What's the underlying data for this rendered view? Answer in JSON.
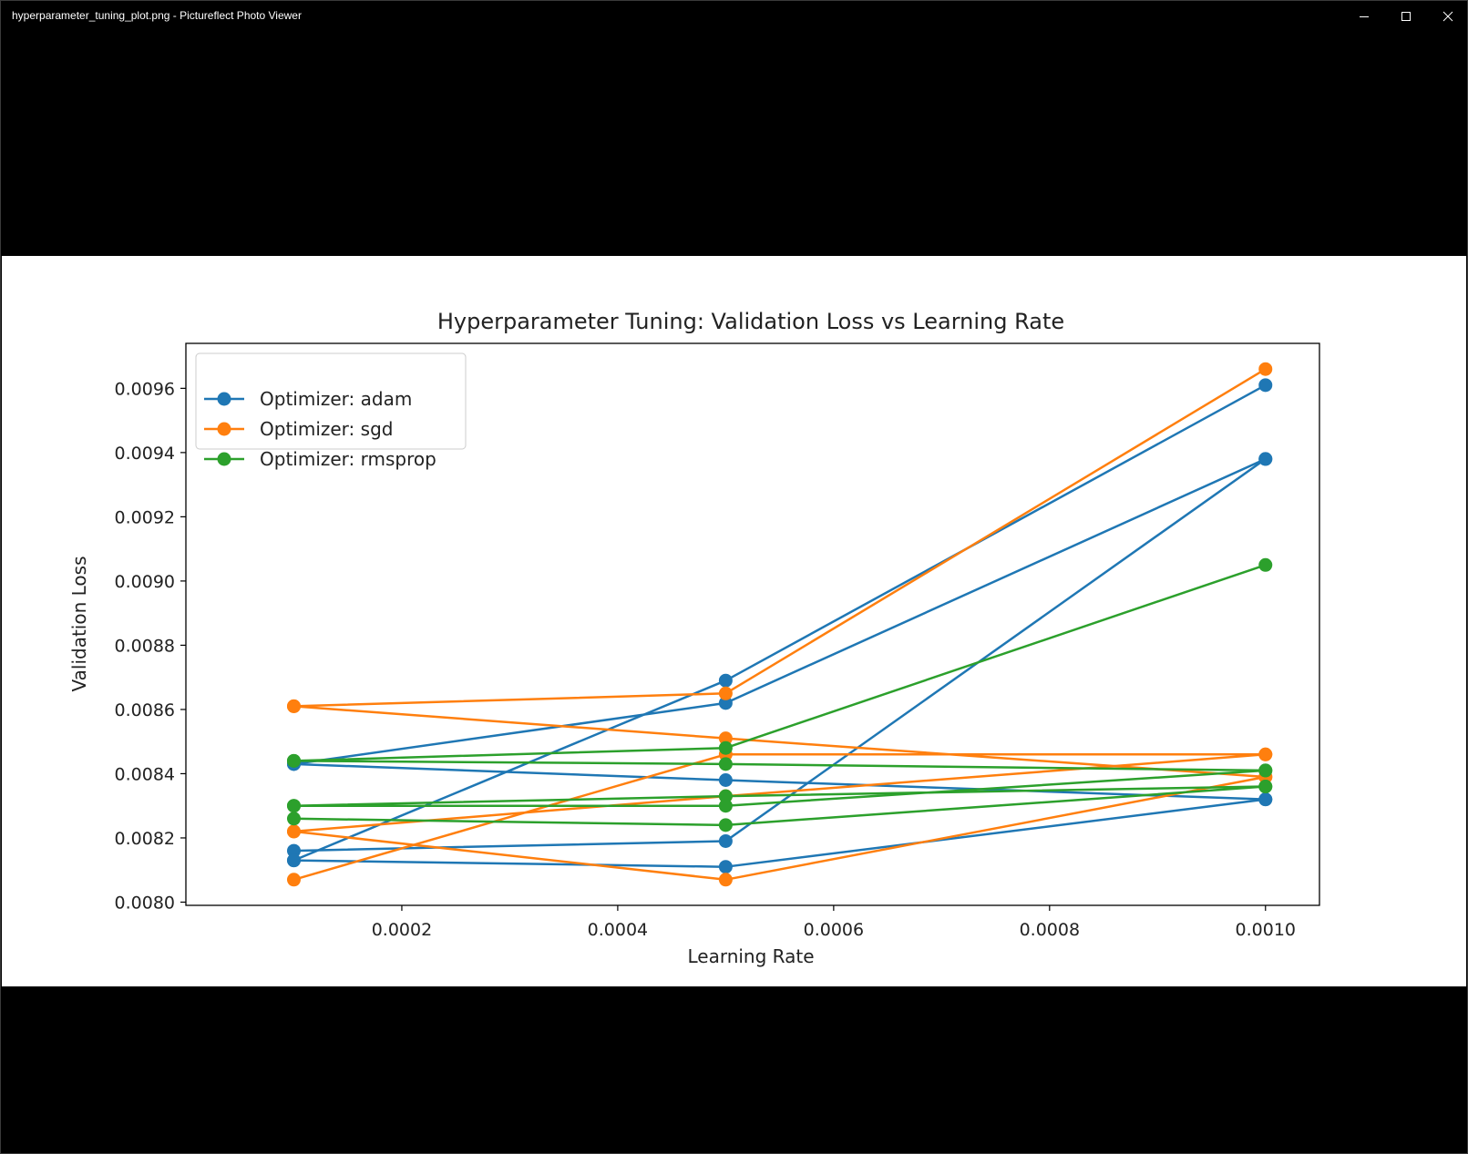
{
  "window": {
    "title": "hyperparameter_tuning_plot.png - Pictureflect Photo Viewer",
    "controls": [
      "minimize-icon",
      "maximize-icon",
      "close-icon"
    ]
  },
  "colors": {
    "adam": "#1f77b4",
    "sgd": "#ff7f0e",
    "rmsprop": "#2ca02c",
    "background": "#000000",
    "plot_background": "#ffffff"
  },
  "chart_data": {
    "type": "line",
    "title": "Hyperparameter Tuning: Validation Loss vs Learning Rate",
    "xlabel": "Learning Rate",
    "ylabel": "Validation Loss",
    "xlim": [
      0.0,
      0.00105
    ],
    "ylim": [
      0.00799,
      0.00974
    ],
    "xticks": [
      0.0002,
      0.0004,
      0.0006,
      0.0008,
      0.001
    ],
    "xtick_labels": [
      "0.0002",
      "0.0004",
      "0.0006",
      "0.0008",
      "0.0010"
    ],
    "yticks": [
      0.008,
      0.0082,
      0.0084,
      0.0086,
      0.0088,
      0.009,
      0.0092,
      0.0094,
      0.0096
    ],
    "ytick_labels": [
      "0.0080",
      "0.0082",
      "0.0084",
      "0.0086",
      "0.0088",
      "0.0090",
      "0.0092",
      "0.0094",
      "0.0096"
    ],
    "grid": false,
    "legend_position": "upper-left",
    "legend": [
      {
        "label": "Optimizer: adam",
        "series": "adam"
      },
      {
        "label": "Optimizer: sgd",
        "series": "sgd"
      },
      {
        "label": "Optimizer: rmsprop",
        "series": "rmsprop"
      }
    ],
    "series": [
      {
        "group": "adam",
        "x": [
          0.0001,
          0.0005,
          0.001
        ],
        "y": [
          0.00843,
          0.00862,
          0.00938
        ]
      },
      {
        "group": "adam",
        "x": [
          0.0001,
          0.0005,
          0.001
        ],
        "y": [
          0.00813,
          0.00869,
          0.00961
        ]
      },
      {
        "group": "adam",
        "x": [
          0.0001,
          0.0005,
          0.001
        ],
        "y": [
          0.00816,
          0.00819,
          0.00938
        ]
      },
      {
        "group": "adam",
        "x": [
          0.0001,
          0.0005,
          0.001
        ],
        "y": [
          0.00843,
          0.00838,
          0.00832
        ]
      },
      {
        "group": "adam",
        "x": [
          0.0001,
          0.0005,
          0.001
        ],
        "y": [
          0.00813,
          0.00811,
          0.00832
        ]
      },
      {
        "group": "sgd",
        "x": [
          0.0001,
          0.0005,
          0.001
        ],
        "y": [
          0.00861,
          0.00865,
          0.00966
        ]
      },
      {
        "group": "sgd",
        "x": [
          0.0001,
          0.0005,
          0.001
        ],
        "y": [
          0.00861,
          0.00851,
          0.00839
        ]
      },
      {
        "group": "sgd",
        "x": [
          0.0001,
          0.0005,
          0.001
        ],
        "y": [
          0.00807,
          0.00846,
          0.00846
        ]
      },
      {
        "group": "sgd",
        "x": [
          0.0001,
          0.0005,
          0.001
        ],
        "y": [
          0.00822,
          0.00833,
          0.00846
        ]
      },
      {
        "group": "sgd",
        "x": [
          0.0001,
          0.0005,
          0.001
        ],
        "y": [
          0.00822,
          0.00807,
          0.00839
        ]
      },
      {
        "group": "rmsprop",
        "x": [
          0.0001,
          0.0005,
          0.001
        ],
        "y": [
          0.00844,
          0.00848,
          0.00905
        ]
      },
      {
        "group": "rmsprop",
        "x": [
          0.0001,
          0.0005,
          0.001
        ],
        "y": [
          0.00844,
          0.00843,
          0.00841
        ]
      },
      {
        "group": "rmsprop",
        "x": [
          0.0001,
          0.0005,
          0.001
        ],
        "y": [
          0.0083,
          0.0083,
          0.00841
        ]
      },
      {
        "group": "rmsprop",
        "x": [
          0.0001,
          0.0005,
          0.001
        ],
        "y": [
          0.0083,
          0.00833,
          0.00836
        ]
      },
      {
        "group": "rmsprop",
        "x": [
          0.0001,
          0.0005,
          0.001
        ],
        "y": [
          0.00826,
          0.00824,
          0.00836
        ]
      }
    ]
  }
}
